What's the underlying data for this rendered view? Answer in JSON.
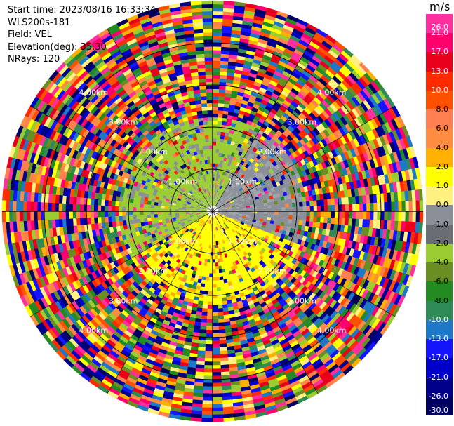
{
  "header": {
    "start_time_label": "Start time:",
    "start_time": "2023/08/16 16:33:34",
    "instrument": "WLS200s-181",
    "field_label": "Field:",
    "field": "VEL",
    "elevation_label": "Elevation(deg):",
    "elevation": "35.30",
    "nrays_label": "NRays:",
    "nrays": "120"
  },
  "colorbar": {
    "unit": "m/s",
    "ticks": [
      "26.0",
      "21.0",
      "17.0",
      "13.0",
      "10.0",
      "8.0",
      "6.0",
      "4.0",
      "2.0",
      "1.0",
      "0.0",
      "-1.0",
      "-2.0",
      "-4.0",
      "-6.0",
      "-8.0",
      "-10.0",
      "-13.0",
      "-17.0",
      "-21.0",
      "-26.0",
      "-30.0"
    ],
    "colors": [
      "#ff2fa0",
      "#ff006e",
      "#e8001c",
      "#ff2a00",
      "#ff5000",
      "#ff7f50",
      "#ff8c40",
      "#ffb000",
      "#ffff00",
      "#fff080",
      "#8a8f98",
      "#6a6e74",
      "#9acd32",
      "#6b8e23",
      "#228b22",
      "#2e8b57",
      "#1e78c8",
      "#1414ff",
      "#0000c8",
      "#00008b",
      "#000060"
    ],
    "light_text": [
      "26.0",
      "21.0",
      "17.0",
      "13.0",
      "10.0",
      "-10.0",
      "-13.0",
      "-17.0",
      "-21.0",
      "-26.0",
      "-30.0"
    ]
  },
  "range_rings": {
    "labels": [
      "1.00km",
      "2.00km",
      "3.00km",
      "4.00km"
    ]
  },
  "chart_data": {
    "type": "heatmap",
    "projection": "polar (PPI)",
    "rays": 120,
    "range_rings_km": [
      1,
      2,
      3,
      4
    ],
    "value_unit": "m/s",
    "vmin": -30.0,
    "vmax": 26.0,
    "grid": true
  }
}
